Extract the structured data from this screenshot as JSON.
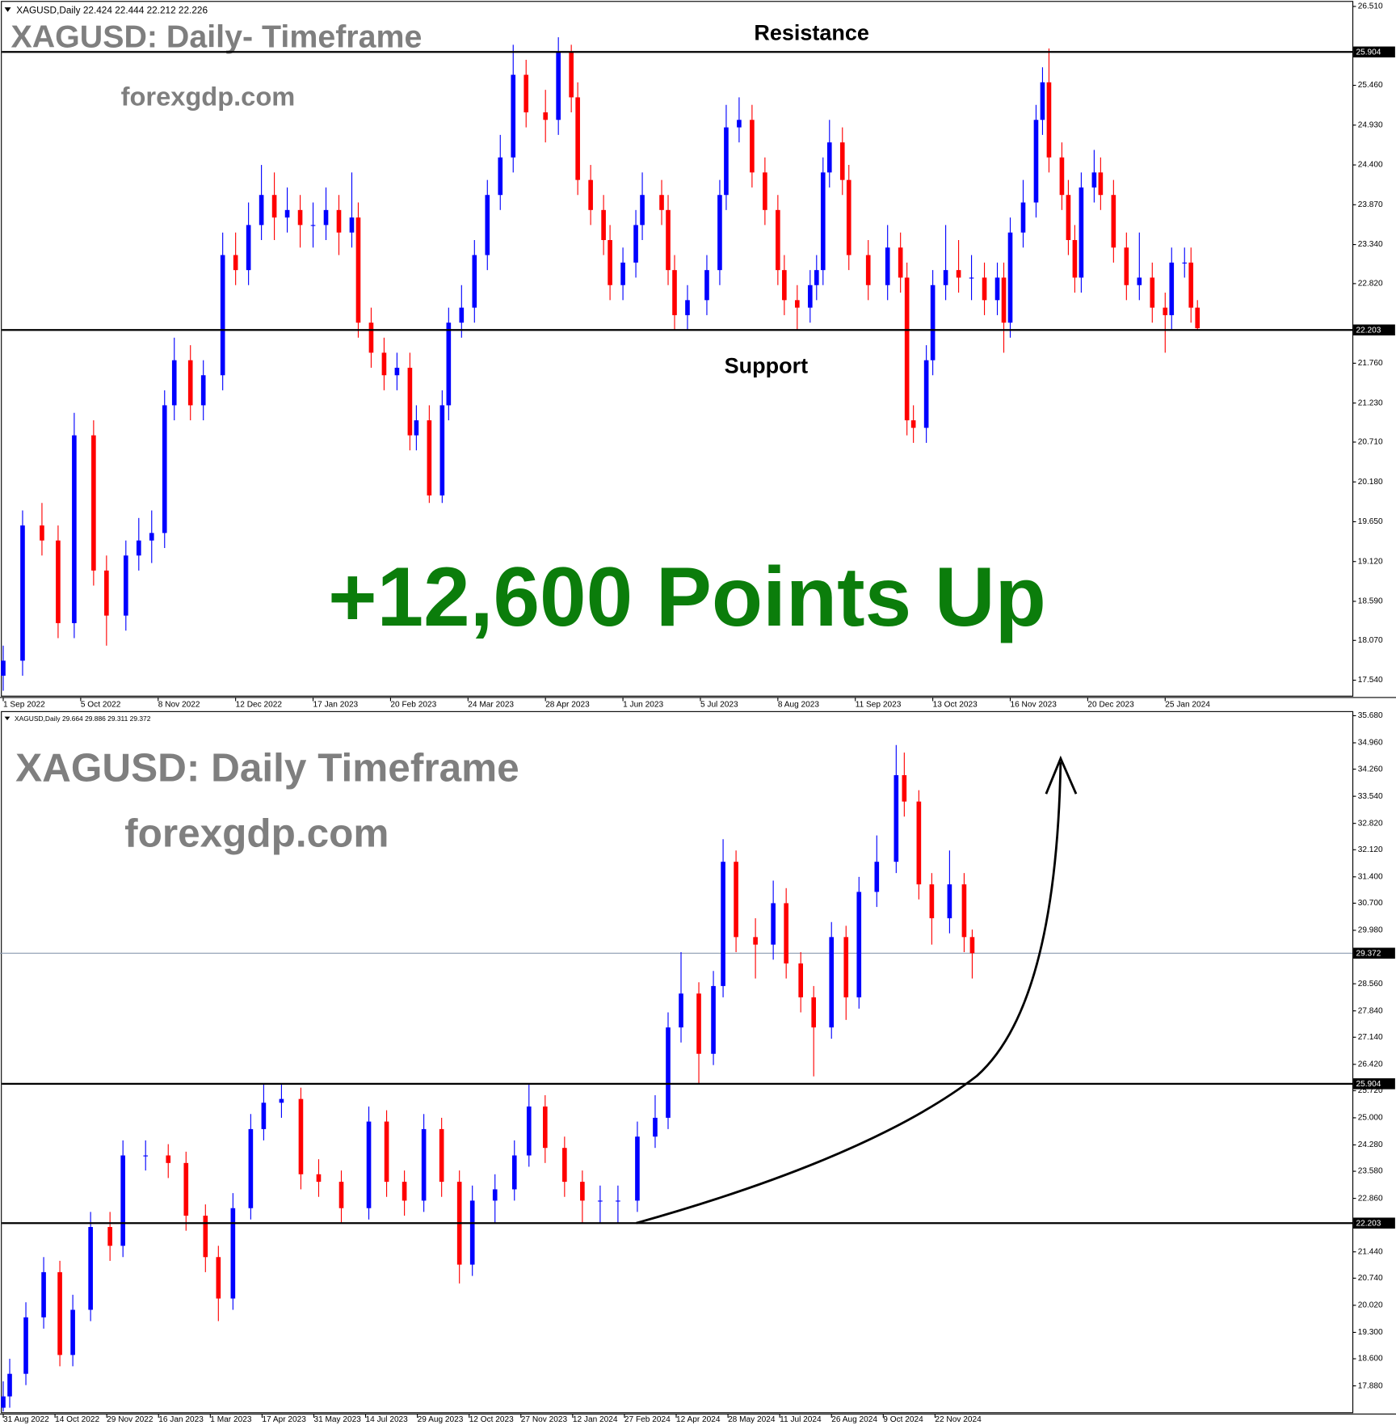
{
  "chart_data": [
    {
      "type": "candlestick",
      "header": "XAGUSD,Daily  22.424 22.444 22.212 22.226",
      "title": "XAGUSD: Daily- Timeframe",
      "subtitle": "forexgdp.com",
      "annotations": [
        "Resistance",
        "Support",
        "+12,600 Points Up"
      ],
      "colors": {
        "up": "#0000ff",
        "down": "#ff0000"
      },
      "levels": [
        25.904,
        22.203
      ],
      "x": [
        0,
        6,
        12,
        17,
        22,
        28,
        32,
        38,
        42,
        46,
        50,
        53,
        58,
        62,
        68,
        72,
        76,
        80,
        84,
        88,
        92,
        96,
        100,
        104,
        108,
        110,
        114,
        118,
        122,
        126,
        128,
        132,
        136,
        138,
        142,
        146,
        150,
        154,
        158,
        162,
        168,
        172,
        176,
        178,
        182,
        186,
        188,
        192,
        196,
        198,
        204,
        206,
        208,
        212,
        218,
        222,
        224,
        228,
        232,
        236,
        240,
        242,
        246,
        250,
        252,
        254,
        256,
        260,
        262,
        268,
        274,
        278,
        280,
        282,
        286,
        288,
        292,
        296,
        300,
        304,
        308,
        310,
        312,
        316,
        320,
        322,
        324,
        328,
        330,
        332,
        334,
        338,
        340,
        344,
        348,
        352,
        356,
        360,
        362,
        366,
        368,
        370
      ],
      "open": [
        17.6,
        17.8,
        19.6,
        19.4,
        18.3,
        20.8,
        19.0,
        18.4,
        19.2,
        19.4,
        19.5,
        21.2,
        21.8,
        21.2,
        21.6,
        23.2,
        23.0,
        23.6,
        24.0,
        23.7,
        23.8,
        23.6,
        23.6,
        23.8,
        23.5,
        23.7,
        22.3,
        21.9,
        21.6,
        21.7,
        20.8,
        21.0,
        20.0,
        21.2,
        22.3,
        22.5,
        23.2,
        24.0,
        24.5,
        25.6,
        25.1,
        25.0,
        25.9,
        25.3,
        24.2,
        23.8,
        23.4,
        22.8,
        23.1,
        23.6,
        24.0,
        23.8,
        23.0,
        22.4,
        22.6,
        23.0,
        24.0,
        24.9,
        25.0,
        24.3,
        23.8,
        23.0,
        22.6,
        22.5,
        22.8,
        23.0,
        24.3,
        24.7,
        24.2,
        23.2,
        22.8,
        23.3,
        22.9,
        21.0,
        20.9,
        21.8,
        22.8,
        23.0,
        22.9,
        22.9,
        22.6,
        22.9,
        22.3,
        23.5,
        23.9,
        25.0,
        25.5,
        24.5,
        24.0,
        23.4,
        22.9,
        24.1,
        24.3,
        24.0,
        23.3,
        22.8,
        22.9,
        22.5,
        22.4,
        23.1,
        23.1,
        22.5
      ],
      "high": [
        18.0,
        19.8,
        19.9,
        19.6,
        21.1,
        21.0,
        19.2,
        19.4,
        19.7,
        19.8,
        21.4,
        22.1,
        22.0,
        21.8,
        23.5,
        23.5,
        23.9,
        24.4,
        24.3,
        24.1,
        24.0,
        23.9,
        24.1,
        24.0,
        24.3,
        23.9,
        22.5,
        22.1,
        21.9,
        21.9,
        21.2,
        21.2,
        21.4,
        22.5,
        22.8,
        23.4,
        24.2,
        24.8,
        26.0,
        25.8,
        25.4,
        26.1,
        26.0,
        25.5,
        24.4,
        24.0,
        23.6,
        23.3,
        23.8,
        24.3,
        24.2,
        24.0,
        23.2,
        22.8,
        23.2,
        24.2,
        25.2,
        25.3,
        25.2,
        24.5,
        24.0,
        23.2,
        22.8,
        23.0,
        23.2,
        24.5,
        25.0,
        24.9,
        24.4,
        23.4,
        23.6,
        23.5,
        23.1,
        21.2,
        22.0,
        23.0,
        23.6,
        23.4,
        23.2,
        23.1,
        23.1,
        23.1,
        23.7,
        24.2,
        25.2,
        25.7,
        25.95,
        24.7,
        24.2,
        23.6,
        24.3,
        24.6,
        24.5,
        24.2,
        23.5,
        23.5,
        23.1,
        22.7,
        23.3,
        23.3,
        23.3,
        22.6
      ],
      "low": [
        17.4,
        17.6,
        19.2,
        18.1,
        18.1,
        18.8,
        18.0,
        18.2,
        19.0,
        19.1,
        19.3,
        21.0,
        21.0,
        21.0,
        21.4,
        22.8,
        22.8,
        23.4,
        23.4,
        23.5,
        23.3,
        23.3,
        23.4,
        23.2,
        23.3,
        22.1,
        21.7,
        21.4,
        21.4,
        20.6,
        20.6,
        19.9,
        19.9,
        21.0,
        22.1,
        22.3,
        23.0,
        23.8,
        24.3,
        24.9,
        24.7,
        24.8,
        25.1,
        24.0,
        23.6,
        23.2,
        22.6,
        22.6,
        22.9,
        23.4,
        23.6,
        22.8,
        22.2,
        22.2,
        22.4,
        22.8,
        23.8,
        24.7,
        24.1,
        23.6,
        22.8,
        22.4,
        22.2,
        22.3,
        22.6,
        22.8,
        24.1,
        24.0,
        23.0,
        22.6,
        22.6,
        22.7,
        20.8,
        20.7,
        20.7,
        21.6,
        22.6,
        22.7,
        22.6,
        22.4,
        22.4,
        21.9,
        22.1,
        23.3,
        23.7,
        24.8,
        24.3,
        23.8,
        23.2,
        22.7,
        22.7,
        23.9,
        23.8,
        23.1,
        22.6,
        22.6,
        22.3,
        21.9,
        22.2,
        22.9,
        22.3,
        22.2
      ],
      "close": [
        17.8,
        19.6,
        19.4,
        18.3,
        20.8,
        19.0,
        18.4,
        19.2,
        19.4,
        19.5,
        21.2,
        21.8,
        21.2,
        21.6,
        23.2,
        23.0,
        23.6,
        24.0,
        23.7,
        23.8,
        23.6,
        23.6,
        23.8,
        23.5,
        23.7,
        22.3,
        21.9,
        21.6,
        21.7,
        20.8,
        21.0,
        20.0,
        21.2,
        22.3,
        22.5,
        23.2,
        24.0,
        24.5,
        25.6,
        25.1,
        25.0,
        25.9,
        25.3,
        24.2,
        23.8,
        23.4,
        22.8,
        23.1,
        23.6,
        24.0,
        23.8,
        23.0,
        22.4,
        22.6,
        23.0,
        24.0,
        24.9,
        25.0,
        24.3,
        23.8,
        23.0,
        22.6,
        22.5,
        22.8,
        23.0,
        24.3,
        24.7,
        24.2,
        23.2,
        22.8,
        23.3,
        22.9,
        21.0,
        20.9,
        21.8,
        22.8,
        23.0,
        22.9,
        22.9,
        22.6,
        22.9,
        22.3,
        23.5,
        23.9,
        25.0,
        25.5,
        24.5,
        24.0,
        23.4,
        22.9,
        24.1,
        24.3,
        24.0,
        23.3,
        22.8,
        22.9,
        22.5,
        22.4,
        23.1,
        23.1,
        22.5,
        22.226
      ],
      "xlim": [
        -1,
        418
      ],
      "ylim": [
        17.334,
        26.571
      ],
      "xticks": [
        {
          "value": 0,
          "label": "1 Sep 2022"
        },
        {
          "value": 24,
          "label": "5 Oct 2022"
        },
        {
          "value": 48,
          "label": "8 Nov 2022"
        },
        {
          "value": 72,
          "label": "12 Dec 2022"
        },
        {
          "value": 96,
          "label": "17 Jan 2023"
        },
        {
          "value": 120,
          "label": "20 Feb 2023"
        },
        {
          "value": 144,
          "label": "24 Mar 2023"
        },
        {
          "value": 168,
          "label": "28 Apr 2023"
        },
        {
          "value": 192,
          "label": "1 Jun 2023"
        },
        {
          "value": 216,
          "label": "5 Jul 2023"
        },
        {
          "value": 240,
          "label": "8 Aug 2023"
        },
        {
          "value": 264,
          "label": "11 Sep 2023"
        },
        {
          "value": 288,
          "label": "13 Oct 2023"
        },
        {
          "value": 312,
          "label": "16 Nov 2023"
        },
        {
          "value": 336,
          "label": "20 Dec 2023"
        },
        {
          "value": 360,
          "label": "25 Jan 2024"
        }
      ],
      "yticks": [
        {
          "value": 17.54,
          "label": "17.540"
        },
        {
          "value": 18.07,
          "label": "18.070"
        },
        {
          "value": 18.59,
          "label": "18.590"
        },
        {
          "value": 19.12,
          "label": "19.120"
        },
        {
          "value": 19.65,
          "label": "19.650"
        },
        {
          "value": 20.18,
          "label": "20.180"
        },
        {
          "value": 20.71,
          "label": "20.710"
        },
        {
          "value": 21.23,
          "label": "21.230"
        },
        {
          "value": 21.76,
          "label": "21.760"
        },
        {
          "value": 22.82,
          "label": "22.820"
        },
        {
          "value": 23.34,
          "label": "23.340"
        },
        {
          "value": 23.87,
          "label": "23.870"
        },
        {
          "value": 24.4,
          "label": "24.400"
        },
        {
          "value": 24.93,
          "label": "24.930"
        },
        {
          "value": 25.46,
          "label": "25.460"
        },
        {
          "value": 26.51,
          "label": "26.510"
        }
      ]
    },
    {
      "type": "candlestick",
      "header": "XAGUSD,Daily  29.664 29.886 29.311 29.372",
      "title": "XAGUSD: Daily Timeframe",
      "subtitle": "forexgdp.com",
      "colors": {
        "up": "#0000ff",
        "down": "#ff0000"
      },
      "levels": [
        25.904,
        22.203
      ],
      "price_line": 29.372,
      "x": [
        0,
        4,
        14,
        25,
        35,
        43,
        54,
        66,
        74,
        88,
        102,
        113,
        125,
        133,
        142,
        153,
        161,
        172,
        184,
        195,
        209,
        226,
        237,
        248,
        260,
        271,
        282,
        290,
        304,
        316,
        325,
        335,
        347,
        358,
        369,
        380,
        392,
        403,
        411,
        419,
        430,
        439,
        445,
        453,
        465,
        476,
        484,
        493,
        501,
        512,
        521,
        529,
        540,
        552,
        557,
        566,
        574,
        585,
        594,
        599
      ],
      "open": [
        17.3,
        17.6,
        18.2,
        19.7,
        20.9,
        18.7,
        19.9,
        22.1,
        21.6,
        24.0,
        24.0,
        23.8,
        22.4,
        21.3,
        20.2,
        22.6,
        24.7,
        25.4,
        25.5,
        23.5,
        23.3,
        22.6,
        24.9,
        23.3,
        22.8,
        24.7,
        23.3,
        21.1,
        22.8,
        23.1,
        24.0,
        25.3,
        24.2,
        23.3,
        22.8,
        22.8,
        22.8,
        24.5,
        25.0,
        27.4,
        28.3,
        26.7,
        28.5,
        31.8,
        29.8,
        29.6,
        30.7,
        29.1,
        28.2,
        27.4,
        29.8,
        28.2,
        31.0,
        31.8,
        34.1,
        33.4,
        31.2,
        30.3,
        31.2,
        29.8
      ],
      "high": [
        18.0,
        18.6,
        20.1,
        21.3,
        21.2,
        20.3,
        22.5,
        22.5,
        24.4,
        24.4,
        24.3,
        24.1,
        22.7,
        21.6,
        23.0,
        25.1,
        25.9,
        25.9,
        25.8,
        23.9,
        23.6,
        25.3,
        25.2,
        23.6,
        25.1,
        25.0,
        23.6,
        23.2,
        23.5,
        24.4,
        25.9,
        25.6,
        24.5,
        23.6,
        23.2,
        23.2,
        24.9,
        25.6,
        27.8,
        29.4,
        28.6,
        28.9,
        32.4,
        32.1,
        30.3,
        31.3,
        31.1,
        29.4,
        28.5,
        30.2,
        30.1,
        31.4,
        32.5,
        34.9,
        34.7,
        33.7,
        31.5,
        32.1,
        31.5,
        30.0
      ],
      "low": [
        17.2,
        17.3,
        17.9,
        19.4,
        18.4,
        18.4,
        19.6,
        21.2,
        21.3,
        23.6,
        23.4,
        22.0,
        20.9,
        19.6,
        19.9,
        22.3,
        24.4,
        25.0,
        23.1,
        22.9,
        22.2,
        22.3,
        22.9,
        22.4,
        22.5,
        22.9,
        20.6,
        20.8,
        22.2,
        22.8,
        23.7,
        23.8,
        22.9,
        22.2,
        22.2,
        22.2,
        22.5,
        24.2,
        24.7,
        27.0,
        25.9,
        26.4,
        28.2,
        29.4,
        28.7,
        29.2,
        28.7,
        27.8,
        26.1,
        27.1,
        27.6,
        27.9,
        30.6,
        31.5,
        33.0,
        30.8,
        29.6,
        29.9,
        29.4,
        28.7
      ],
      "close": [
        17.6,
        18.2,
        19.7,
        20.9,
        18.7,
        19.9,
        22.1,
        21.6,
        24.0,
        24.0,
        23.8,
        22.4,
        21.3,
        20.2,
        22.6,
        24.7,
        25.4,
        25.5,
        23.5,
        23.3,
        22.6,
        24.9,
        23.3,
        22.8,
        24.7,
        23.3,
        21.1,
        22.8,
        23.1,
        24.0,
        25.3,
        24.2,
        23.3,
        22.8,
        22.8,
        22.8,
        24.5,
        25.0,
        27.4,
        28.3,
        26.7,
        28.5,
        31.8,
        29.8,
        29.6,
        30.7,
        29.1,
        28.2,
        27.4,
        29.8,
        28.2,
        31.0,
        31.8,
        34.1,
        33.4,
        31.2,
        30.3,
        31.2,
        29.8,
        29.372
      ],
      "xlim": [
        -2,
        834
      ],
      "ylim": [
        17.18,
        35.777
      ],
      "xticks": [
        {
          "value": 0,
          "label": "31 Aug 2022"
        },
        {
          "value": 32,
          "label": "14 Oct 2022"
        },
        {
          "value": 64,
          "label": "29 Nov 2022"
        },
        {
          "value": 96,
          "label": "16 Jan 2023"
        },
        {
          "value": 128,
          "label": "1 Mar 2023"
        },
        {
          "value": 160,
          "label": "17 Apr 2023"
        },
        {
          "value": 192,
          "label": "31 May 2023"
        },
        {
          "value": 224,
          "label": "14 Jul 2023"
        },
        {
          "value": 256,
          "label": "29 Aug 2023"
        },
        {
          "value": 288,
          "label": "12 Oct 2023"
        },
        {
          "value": 320,
          "label": "27 Nov 2023"
        },
        {
          "value": 352,
          "label": "12 Jan 2024"
        },
        {
          "value": 384,
          "label": "27 Feb 2024"
        },
        {
          "value": 416,
          "label": "12 Apr 2024"
        },
        {
          "value": 448,
          "label": "28 May 2024"
        },
        {
          "value": 480,
          "label": "11 Jul 2024"
        },
        {
          "value": 512,
          "label": "26 Aug 2024"
        },
        {
          "value": 544,
          "label": "9 Oct 2024"
        },
        {
          "value": 576,
          "label": "22 Nov 2024"
        }
      ],
      "yticks": [
        {
          "value": 17.88,
          "label": "17.880"
        },
        {
          "value": 18.6,
          "label": "18.600"
        },
        {
          "value": 19.3,
          "label": "19.300"
        },
        {
          "value": 20.02,
          "label": "20.020"
        },
        {
          "value": 20.74,
          "label": "20.740"
        },
        {
          "value": 21.44,
          "label": "21.440"
        },
        {
          "value": 22.86,
          "label": "22.860"
        },
        {
          "value": 23.58,
          "label": "23.580"
        },
        {
          "value": 24.28,
          "label": "24.280"
        },
        {
          "value": 25.0,
          "label": "25.000"
        },
        {
          "value": 25.72,
          "label": "25.720"
        },
        {
          "value": 26.42,
          "label": "26.420"
        },
        {
          "value": 27.14,
          "label": "27.140"
        },
        {
          "value": 27.84,
          "label": "27.840"
        },
        {
          "value": 28.56,
          "label": "28.560"
        },
        {
          "value": 29.98,
          "label": "29.980"
        },
        {
          "value": 30.7,
          "label": "30.700"
        },
        {
          "value": 31.4,
          "label": "31.400"
        },
        {
          "value": 32.12,
          "label": "32.120"
        },
        {
          "value": 32.82,
          "label": "32.820"
        },
        {
          "value": 33.54,
          "label": "33.540"
        },
        {
          "value": 34.26,
          "label": "34.260"
        },
        {
          "value": 34.96,
          "label": "34.960"
        },
        {
          "value": 35.68,
          "label": "35.680"
        }
      ]
    }
  ]
}
